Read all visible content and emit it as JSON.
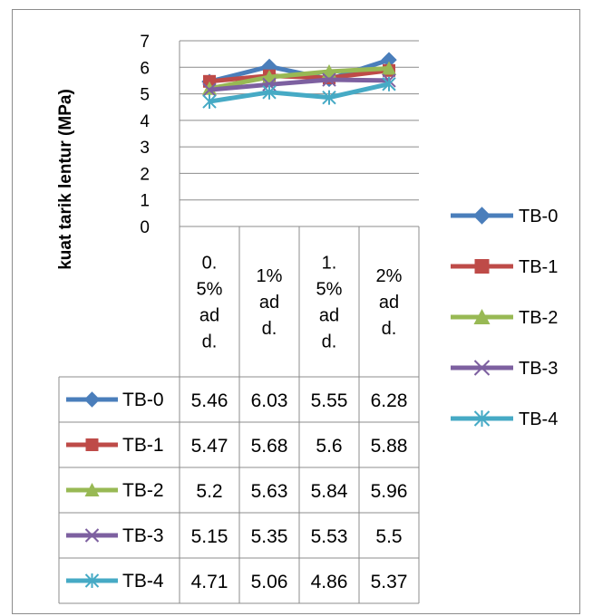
{
  "chart_data": {
    "type": "line",
    "title": "",
    "xlabel": "",
    "ylabel": "kuat tarik lentur (MPa)",
    "ylim": [
      0,
      7
    ],
    "yticks": [
      0,
      1,
      2,
      3,
      4,
      5,
      6,
      7
    ],
    "grid": true,
    "legend_position": "right",
    "data_table": true,
    "categories": [
      [
        "0.",
        "5%",
        "ad",
        "d."
      ],
      [
        "1%",
        "ad",
        "d."
      ],
      [
        "1.",
        "5%",
        "ad",
        "d."
      ],
      [
        "2%",
        "ad",
        "d."
      ]
    ],
    "series": [
      {
        "name": "TB-0",
        "color": "#4a7ebb",
        "marker": "diamond",
        "values": [
          5.46,
          6.03,
          5.55,
          6.28
        ]
      },
      {
        "name": "TB-1",
        "color": "#be4b48",
        "marker": "square",
        "values": [
          5.47,
          5.68,
          5.6,
          5.88
        ]
      },
      {
        "name": "TB-2",
        "color": "#98b954",
        "marker": "triangle",
        "values": [
          5.2,
          5.63,
          5.84,
          5.96
        ]
      },
      {
        "name": "TB-3",
        "color": "#7d60a0",
        "marker": "x",
        "values": [
          5.15,
          5.35,
          5.53,
          5.5
        ]
      },
      {
        "name": "TB-4",
        "color": "#46aac5",
        "marker": "star",
        "values": [
          4.71,
          5.06,
          4.86,
          5.37
        ]
      }
    ]
  }
}
